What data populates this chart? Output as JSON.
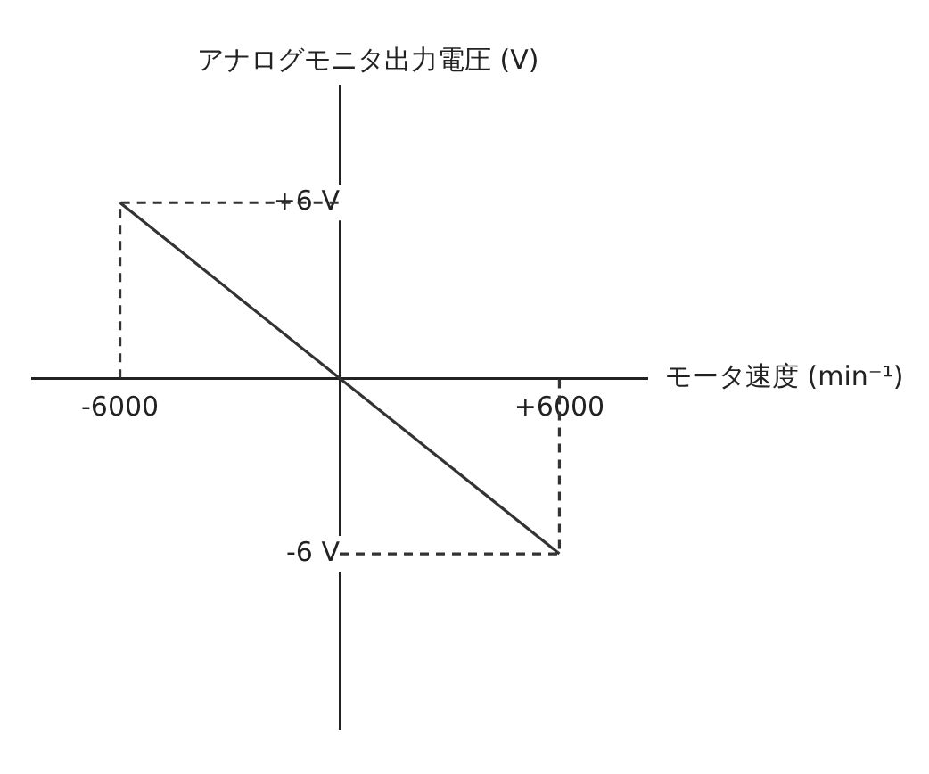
{
  "chart_data": {
    "type": "line",
    "xlabel": "モータ速度 (min⁻¹)",
    "ylabel": "アナログモニタ出力電圧 (V)",
    "xlim": [
      -8400,
      8400
    ],
    "ylim": [
      -12,
      10
    ],
    "xticks": [
      {
        "value": -6000,
        "label": "-6000"
      },
      {
        "value": 6000,
        "label": "+6000"
      }
    ],
    "yticks": [
      {
        "value": -6,
        "label": "-6 V"
      },
      {
        "value": 6,
        "label": "+6 V"
      }
    ],
    "grid": false,
    "legend": false,
    "marker": "none",
    "series": [
      {
        "color": "#333333",
        "x": [
          -6000,
          6000
        ],
        "values": [
          6,
          -6
        ],
        "line_style": "solid"
      },
      {
        "color": "#333333",
        "x": [
          -6000,
          -6000,
          0
        ],
        "values": [
          0,
          6,
          6
        ],
        "line_style": "dashed"
      },
      {
        "color": "#333333",
        "x": [
          0,
          6000,
          6000
        ],
        "values": [
          -6,
          -6,
          0
        ],
        "line_style": "dashed"
      }
    ]
  }
}
